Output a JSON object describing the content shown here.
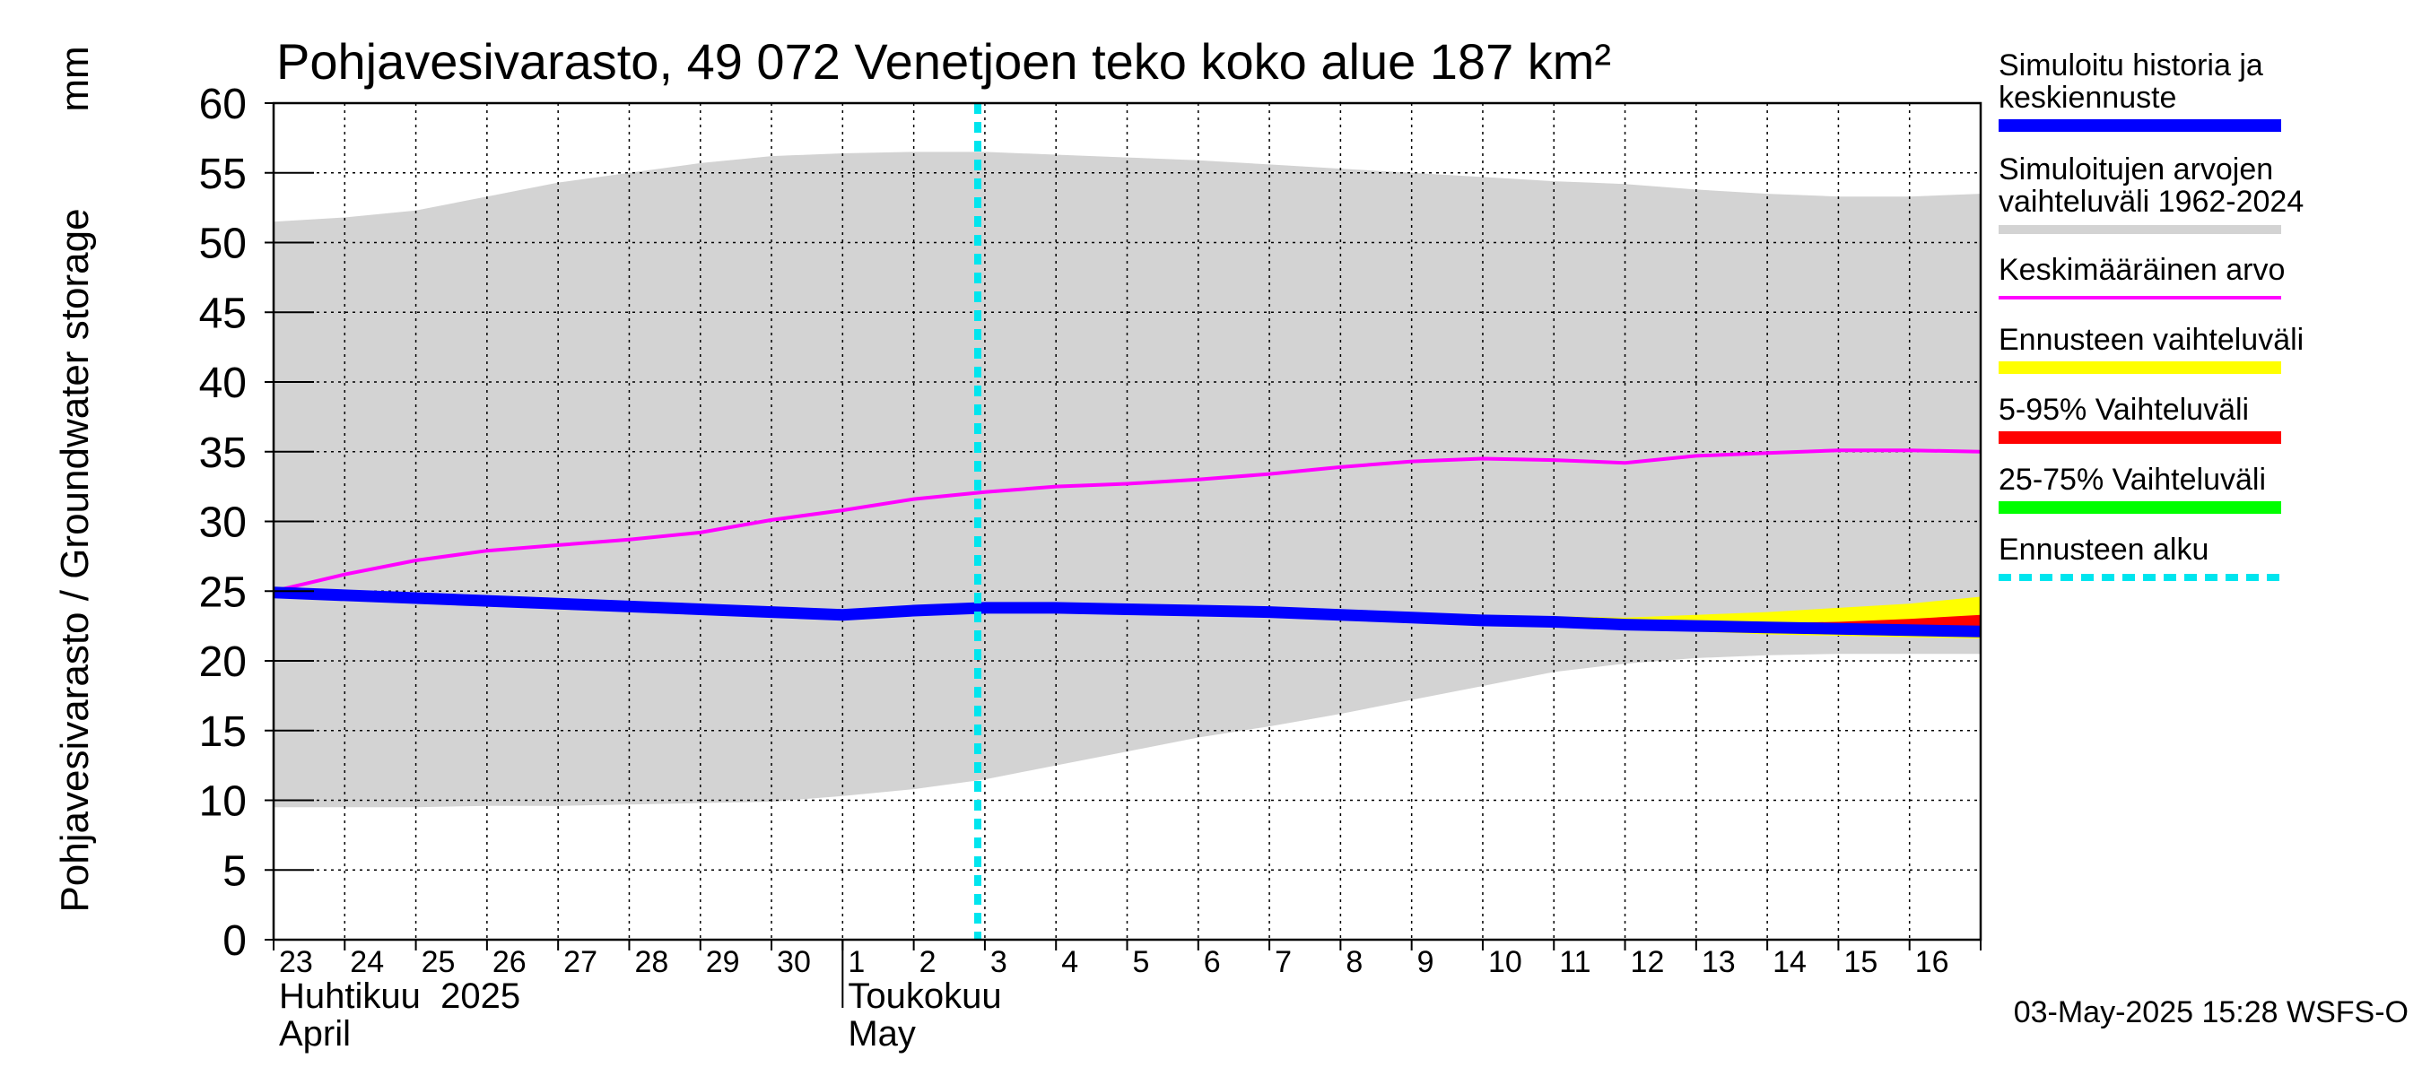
{
  "chart_data": {
    "type": "line",
    "title": "Pohjavesivarasto, 49 072 Venetjoen teko koko alue 187 km²",
    "ylabel": "Pohjavesivarasto / Groundwater storage",
    "yunit": "mm",
    "ylim": [
      0,
      60
    ],
    "yticks": [
      0,
      5,
      10,
      15,
      20,
      25,
      30,
      35,
      40,
      45,
      50,
      55,
      60
    ],
    "x_start": "2025-04-23",
    "x_end": "2025-05-16",
    "day_labels": [
      "23",
      "24",
      "25",
      "26",
      "27",
      "28",
      "29",
      "30",
      "1",
      "2",
      "3",
      "4",
      "5",
      "6",
      "7",
      "8",
      "9",
      "10",
      "11",
      "12",
      "13",
      "14",
      "15",
      "16"
    ],
    "month_labels": [
      {
        "fi": "Huhtikuu  2025",
        "en": "April"
      },
      {
        "fi": "Toukokuu",
        "en": "May"
      }
    ],
    "grid": true,
    "legend_position": "right",
    "forecast_start": "2025-05-03",
    "timestamp": "03-May-2025 15:28 WSFS-O",
    "x": [
      "2025-04-23",
      "2025-04-24",
      "2025-04-25",
      "2025-04-26",
      "2025-04-27",
      "2025-04-28",
      "2025-04-29",
      "2025-04-30",
      "2025-05-01",
      "2025-05-02",
      "2025-05-03",
      "2025-05-04",
      "2025-05-05",
      "2025-05-06",
      "2025-05-07",
      "2025-05-08",
      "2025-05-09",
      "2025-05-10",
      "2025-05-11",
      "2025-05-12",
      "2025-05-13",
      "2025-05-14",
      "2025-05-15",
      "2025-05-16",
      "2025-05-17"
    ],
    "series": [
      {
        "name": "Simuloitu historia ja keskiennuste",
        "color": "#0000ff",
        "values": [
          24.9,
          24.7,
          24.5,
          24.3,
          24.1,
          23.9,
          23.7,
          23.5,
          23.3,
          23.6,
          23.8,
          23.8,
          23.7,
          23.6,
          23.5,
          23.3,
          23.1,
          22.9,
          22.8,
          22.6,
          22.5,
          22.4,
          22.3,
          22.2,
          22.1
        ]
      },
      {
        "name": "Simuloitujen arvojen vaihteluväli 1962-2024",
        "color": "#d3d3d3",
        "lower": [
          9.5,
          9.5,
          9.5,
          9.6,
          9.6,
          9.7,
          9.8,
          9.9,
          10.3,
          10.8,
          11.5,
          12.5,
          13.5,
          14.5,
          15.3,
          16.2,
          17.2,
          18.2,
          19.2,
          19.8,
          20.2,
          20.4,
          20.5,
          20.5,
          20.5
        ],
        "upper": [
          51.5,
          51.8,
          52.3,
          53.3,
          54.3,
          55.0,
          55.7,
          56.2,
          56.4,
          56.5,
          56.5,
          56.3,
          56.1,
          55.9,
          55.6,
          55.3,
          55.0,
          54.7,
          54.4,
          54.2,
          53.8,
          53.5,
          53.3,
          53.3,
          53.5
        ]
      },
      {
        "name": "Keskimääräinen arvo",
        "color": "#ff00ff",
        "values": [
          25.0,
          26.2,
          27.2,
          27.9,
          28.3,
          28.7,
          29.2,
          30.1,
          30.8,
          31.6,
          32.1,
          32.5,
          32.7,
          33.0,
          33.4,
          33.9,
          34.3,
          34.5,
          34.4,
          34.2,
          34.7,
          34.9,
          35.1,
          35.1,
          35.0
        ]
      },
      {
        "name": "Ennusteen vaihteluväli",
        "color": "#ffff00",
        "x_from": "2025-05-03",
        "lower": [
          23.8,
          23.7,
          23.6,
          23.5,
          23.4,
          23.2,
          23.0,
          22.7,
          22.5,
          22.3,
          22.1,
          21.9,
          21.8,
          21.7,
          21.6
        ],
        "upper": [
          23.8,
          23.9,
          23.8,
          23.7,
          23.7,
          23.6,
          23.5,
          23.3,
          23.2,
          23.1,
          23.3,
          23.5,
          23.8,
          24.1,
          24.6
        ]
      },
      {
        "name": "5-95% Vaihteluväli",
        "color": "#ff0000",
        "x_from": "2025-05-03",
        "lower": [
          23.8,
          23.7,
          23.6,
          23.5,
          23.4,
          23.2,
          23.0,
          22.7,
          22.6,
          22.4,
          22.2,
          22.0,
          21.9,
          21.8,
          21.8
        ],
        "upper": [
          23.8,
          23.9,
          23.8,
          23.7,
          23.6,
          23.5,
          23.3,
          23.1,
          22.9,
          22.8,
          22.7,
          22.7,
          22.8,
          23.0,
          23.3
        ]
      },
      {
        "name": "25-75% Vaihteluväli",
        "color": "#00ff00",
        "x_from": "2025-05-03",
        "lower": [
          23.8,
          23.8,
          23.7,
          23.6,
          23.5,
          23.3,
          23.1,
          22.9,
          22.8,
          22.6,
          22.5,
          22.4,
          22.3,
          22.2,
          22.1
        ],
        "upper": [
          23.8,
          23.8,
          23.7,
          23.6,
          23.5,
          23.3,
          23.1,
          22.9,
          22.8,
          22.6,
          22.5,
          22.4,
          22.4,
          22.3,
          22.3
        ]
      },
      {
        "name": "Ennusteen alku",
        "color": "#00e5ee"
      }
    ]
  }
}
